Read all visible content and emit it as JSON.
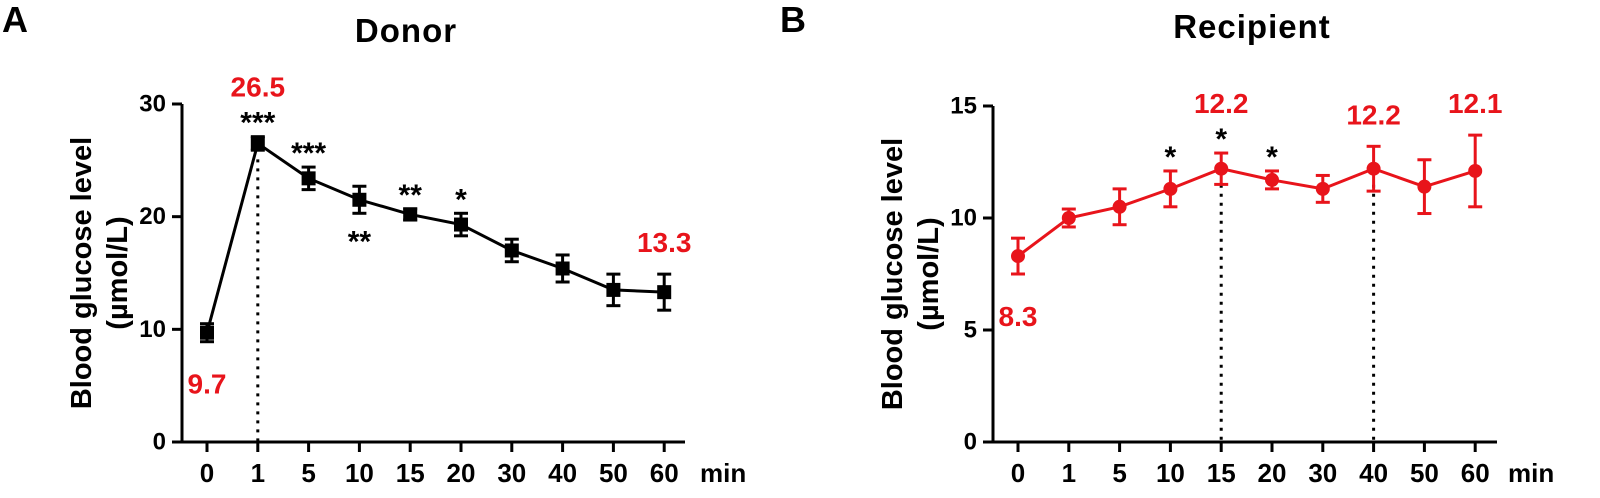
{
  "figure": {
    "x_unit": "min",
    "y_label_line1": "Blood glucose level",
    "y_label_line2": "(µmol/L)"
  },
  "colors": {
    "donor": "#000000",
    "recipient": "#e8141b",
    "annotation_red": "#e8141b",
    "axis": "#000000"
  },
  "chart_data": [
    {
      "panel": "A",
      "type": "line",
      "title": "Donor",
      "xlabel": "min",
      "ylabel": "Blood glucose level (µmol/L)",
      "categories": [
        "0",
        "1",
        "5",
        "10",
        "15",
        "20",
        "30",
        "40",
        "50",
        "60"
      ],
      "ylim": [
        0,
        30
      ],
      "yticks": [
        0,
        10,
        20,
        30
      ],
      "marker": "square",
      "color": "#000000",
      "values": [
        9.7,
        26.5,
        23.4,
        21.5,
        20.2,
        19.3,
        17.0,
        15.4,
        13.5,
        13.3
      ],
      "errors": [
        0.8,
        0.6,
        1.0,
        1.2,
        0.5,
        1.0,
        1.0,
        1.2,
        1.4,
        1.6
      ],
      "significance": [
        {
          "index": 1,
          "label": "***",
          "position": "above"
        },
        {
          "index": 2,
          "label": "***",
          "position": "above"
        },
        {
          "index": 3,
          "label": "**",
          "position": "below"
        },
        {
          "index": 4,
          "label": "**",
          "position": "above"
        },
        {
          "index": 5,
          "label": "*",
          "position": "above"
        }
      ],
      "value_labels": [
        {
          "index": 0,
          "text": "9.7",
          "position": "below"
        },
        {
          "index": 1,
          "text": "26.5",
          "position": "above"
        },
        {
          "index": 9,
          "text": "13.3",
          "position": "above"
        }
      ],
      "dotted_lines": [
        1
      ]
    },
    {
      "panel": "B",
      "type": "line",
      "title": "Recipient",
      "xlabel": "min",
      "ylabel": "Blood glucose level (µmol/L)",
      "categories": [
        "0",
        "1",
        "5",
        "10",
        "15",
        "20",
        "30",
        "40",
        "50",
        "60"
      ],
      "ylim": [
        0,
        15
      ],
      "yticks": [
        0,
        5,
        10,
        15
      ],
      "marker": "circle",
      "color": "#e8141b",
      "values": [
        8.3,
        10.0,
        10.5,
        11.3,
        12.2,
        11.7,
        11.3,
        12.2,
        11.4,
        12.1
      ],
      "errors": [
        0.8,
        0.4,
        0.8,
        0.8,
        0.7,
        0.4,
        0.6,
        1.0,
        1.2,
        1.6
      ],
      "significance": [
        {
          "index": 3,
          "label": "*",
          "position": "above"
        },
        {
          "index": 4,
          "label": "*",
          "position": "above"
        },
        {
          "index": 5,
          "label": "*",
          "position": "above"
        }
      ],
      "value_labels": [
        {
          "index": 0,
          "text": "8.3",
          "position": "below"
        },
        {
          "index": 4,
          "text": "12.2",
          "position": "above"
        },
        {
          "index": 7,
          "text": "12.2",
          "position": "above"
        },
        {
          "index": 9,
          "text": "12.1",
          "position": "above"
        }
      ],
      "dotted_lines": [
        4,
        7
      ]
    }
  ]
}
